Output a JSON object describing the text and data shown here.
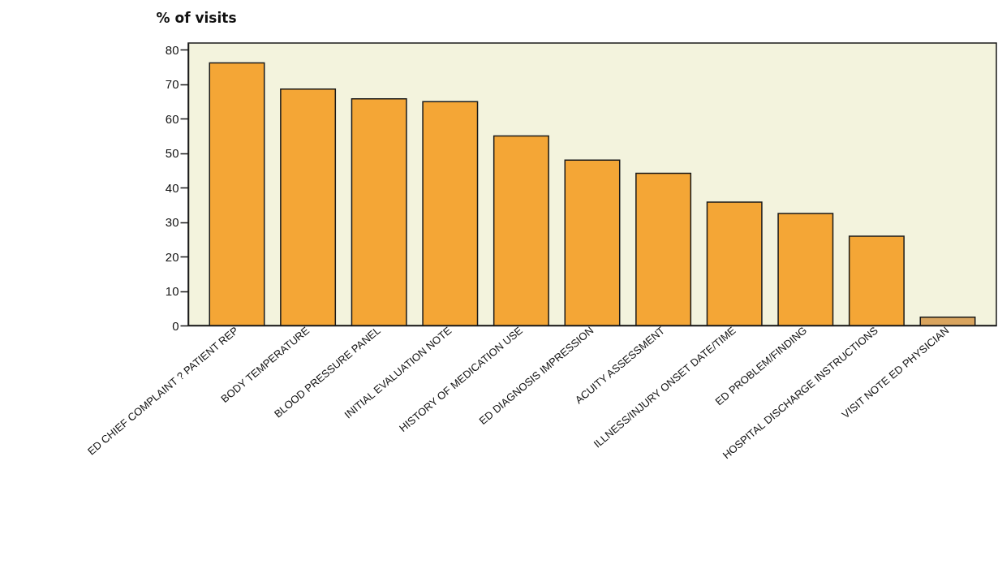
{
  "chart_data": {
    "type": "bar",
    "ylabel": "% of visits",
    "categories": [
      "ED CHIEF COMPLAINT ? PATIENT REP",
      "BODY TEMPERATURE",
      "BLOOD PRESSURE PANEL",
      "INITIAL EVALUATION NOTE",
      "HISTORY OF MEDICATION USE",
      "ED DIAGNOSIS IMPRESSION",
      "ACUITY ASSESSMENT",
      "ILLNESS/INJURY ONSET DATE/TIME",
      "ED PROBLEM/FINDING",
      "HOSPITAL DISCHARGE INSTRUCTIONS",
      "VISIT NOTE ED PHYSICIAN"
    ],
    "values": [
      76.2,
      68.6,
      65.8,
      65,
      55,
      48,
      44.2,
      35.8,
      32.5,
      25.9,
      2.4
    ],
    "colors": [
      "#f4a636",
      "#f4a636",
      "#f4a636",
      "#f4a636",
      "#f4a636",
      "#f4a636",
      "#f4a636",
      "#f4a636",
      "#f4a636",
      "#f4a636",
      "#d9a45e"
    ],
    "ylim": [
      0,
      82
    ],
    "yticks": [
      0,
      10,
      20,
      30,
      40,
      50,
      60,
      70,
      80
    ],
    "grid": false
  }
}
